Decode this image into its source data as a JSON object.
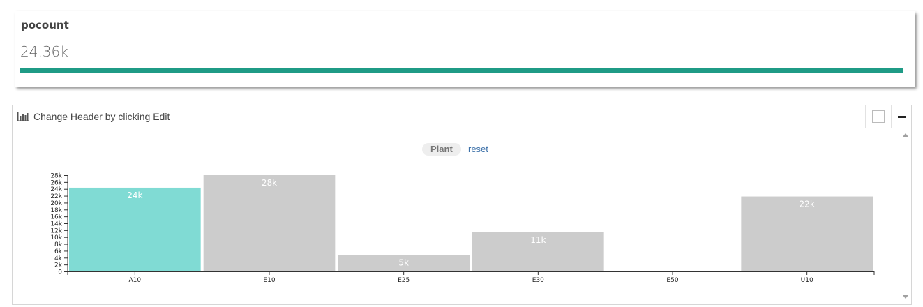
{
  "kpi": {
    "title": "pocount",
    "value": "24.36k",
    "progress_fraction": 1.0,
    "bar_color": "#1f9b86"
  },
  "panel": {
    "title": "Change Header by clicking Edit",
    "icon": "bar-chart-icon",
    "filter_label": "Plant",
    "reset_label": "reset"
  },
  "colors": {
    "selected_bar": "#80dbd4",
    "bar": "#cccccc",
    "label_text": "#ffffff"
  },
  "chart_data": {
    "type": "bar",
    "categories": [
      "A10",
      "E10",
      "E25",
      "E30",
      "E50",
      "U10"
    ],
    "values": [
      24360,
      28000,
      4800,
      11400,
      200,
      21800
    ],
    "labels": [
      "24k",
      "28k",
      "5k",
      "11k",
      "",
      "22k"
    ],
    "selected": [
      "A10"
    ],
    "ylim": [
      0,
      28000
    ],
    "yticks": [
      0,
      2000,
      4000,
      6000,
      8000,
      10000,
      12000,
      14000,
      16000,
      18000,
      20000,
      22000,
      24000,
      26000,
      28000
    ],
    "yticklabels": [
      "0",
      "2k",
      "4k",
      "6k",
      "8k",
      "10k",
      "12k",
      "14k",
      "16k",
      "18k",
      "20k",
      "22k",
      "24k",
      "26k",
      "28k"
    ],
    "grid": false
  }
}
